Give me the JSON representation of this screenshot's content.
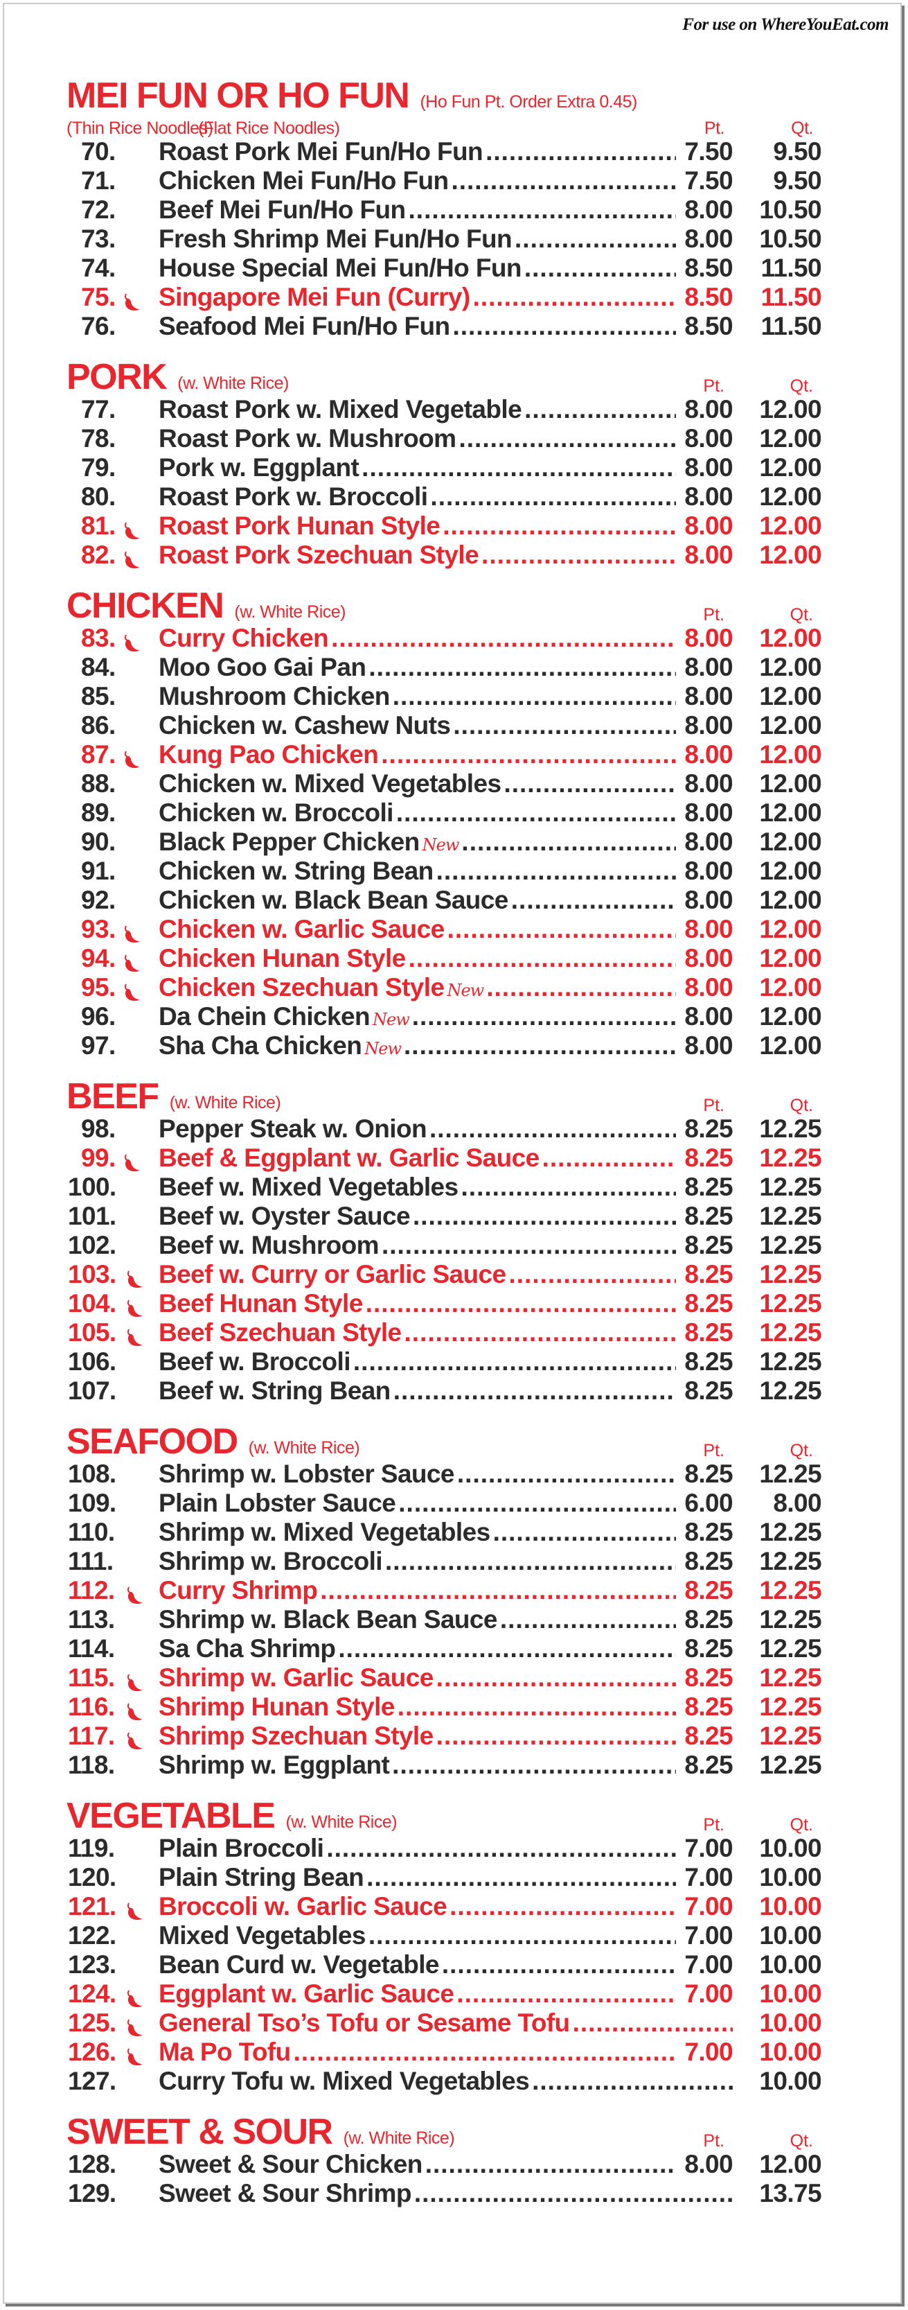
{
  "credit": "For use on WhereYouEat.com",
  "colors": {
    "accent_red": "#e8262e",
    "text": "#2b2b2b"
  },
  "column_labels": {
    "pt": "Pt.",
    "qt": "Qt."
  },
  "new_label": "New",
  "sections": [
    {
      "title": "MEI FUN OR HO FUN",
      "note": "(Ho Fun Pt. Order Extra 0.45)",
      "sub_left": "(Thin Rice Noodles)",
      "sub_right": "(Flat Rice Noodles)",
      "items": [
        {
          "num": "70.",
          "name": "Roast Pork Mei Fun/Ho Fun",
          "pt": "7.50",
          "qt": "9.50"
        },
        {
          "num": "71.",
          "name": "Chicken Mei Fun/Ho Fun",
          "pt": "7.50",
          "qt": "9.50"
        },
        {
          "num": "72.",
          "name": "Beef Mei Fun/Ho Fun",
          "pt": "8.00",
          "qt": "10.50"
        },
        {
          "num": "73.",
          "name": "Fresh Shrimp Mei Fun/Ho Fun",
          "pt": "8.00",
          "qt": "10.50"
        },
        {
          "num": "74.",
          "name": "House Special Mei Fun/Ho Fun",
          "pt": "8.50",
          "qt": "11.50"
        },
        {
          "num": "75.",
          "name": "Singapore Mei Fun (Curry)",
          "pt": "8.50",
          "qt": "11.50",
          "spicy": true
        },
        {
          "num": "76.",
          "name": "Seafood Mei Fun/Ho Fun",
          "pt": "8.50",
          "qt": "11.50"
        }
      ]
    },
    {
      "title": "PORK",
      "note": "(w. White Rice)",
      "items": [
        {
          "num": "77.",
          "name": "Roast Pork w. Mixed Vegetable",
          "pt": "8.00",
          "qt": "12.00"
        },
        {
          "num": "78.",
          "name": "Roast Pork w. Mushroom",
          "pt": "8.00",
          "qt": "12.00"
        },
        {
          "num": "79.",
          "name": "Pork w. Eggplant",
          "pt": "8.00",
          "qt": "12.00"
        },
        {
          "num": "80.",
          "name": "Roast Pork w. Broccoli",
          "pt": "8.00",
          "qt": "12.00"
        },
        {
          "num": "81.",
          "name": "Roast Pork Hunan Style",
          "pt": "8.00",
          "qt": "12.00",
          "spicy": true
        },
        {
          "num": "82.",
          "name": "Roast Pork Szechuan Style",
          "pt": "8.00",
          "qt": "12.00",
          "spicy": true
        }
      ]
    },
    {
      "title": "CHICKEN",
      "note": "(w. White Rice)",
      "items": [
        {
          "num": "83.",
          "name": "Curry Chicken",
          "pt": "8.00",
          "qt": "12.00",
          "spicy": true
        },
        {
          "num": "84.",
          "name": "Moo Goo Gai Pan",
          "pt": "8.00",
          "qt": "12.00"
        },
        {
          "num": "85.",
          "name": "Mushroom Chicken",
          "pt": "8.00",
          "qt": "12.00"
        },
        {
          "num": "86.",
          "name": "Chicken w. Cashew Nuts",
          "pt": "8.00",
          "qt": "12.00"
        },
        {
          "num": "87.",
          "name": "Kung Pao Chicken",
          "pt": "8.00",
          "qt": "12.00",
          "spicy": true
        },
        {
          "num": "88.",
          "name": "Chicken w. Mixed Vegetables",
          "pt": "8.00",
          "qt": "12.00"
        },
        {
          "num": "89.",
          "name": "Chicken w. Broccoli",
          "pt": "8.00",
          "qt": "12.00"
        },
        {
          "num": "90.",
          "name": "Black Pepper Chicken",
          "pt": "8.00",
          "qt": "12.00",
          "new": true
        },
        {
          "num": "91.",
          "name": "Chicken w. String Bean",
          "pt": "8.00",
          "qt": "12.00"
        },
        {
          "num": "92.",
          "name": "Chicken w. Black Bean Sauce",
          "pt": "8.00",
          "qt": "12.00"
        },
        {
          "num": "93.",
          "name": "Chicken w. Garlic Sauce",
          "pt": "8.00",
          "qt": "12.00",
          "spicy": true
        },
        {
          "num": "94.",
          "name": "Chicken Hunan Style",
          "pt": "8.00",
          "qt": "12.00",
          "spicy": true
        },
        {
          "num": "95.",
          "name": "Chicken Szechuan Style",
          "pt": "8.00",
          "qt": "12.00",
          "spicy": true,
          "new": true
        },
        {
          "num": "96.",
          "name": "Da Chein Chicken",
          "pt": "8.00",
          "qt": "12.00",
          "new": true
        },
        {
          "num": "97.",
          "name": "Sha Cha Chicken",
          "pt": "8.00",
          "qt": "12.00",
          "new": true
        }
      ]
    },
    {
      "title": "BEEF",
      "note": "(w. White Rice)",
      "items": [
        {
          "num": "98.",
          "name": "Pepper Steak w. Onion",
          "pt": "8.25",
          "qt": "12.25"
        },
        {
          "num": "99.",
          "name": "Beef & Eggplant w. Garlic Sauce",
          "pt": "8.25",
          "qt": "12.25",
          "spicy": true
        },
        {
          "num": "100.",
          "name": "Beef w. Mixed Vegetables",
          "pt": "8.25",
          "qt": "12.25"
        },
        {
          "num": "101.",
          "name": "Beef w. Oyster Sauce",
          "pt": "8.25",
          "qt": "12.25"
        },
        {
          "num": "102.",
          "name": "Beef w. Mushroom",
          "pt": "8.25",
          "qt": "12.25"
        },
        {
          "num": "103.",
          "name": "Beef w. Curry or Garlic Sauce",
          "pt": "8.25",
          "qt": "12.25",
          "spicy": true
        },
        {
          "num": "104.",
          "name": "Beef Hunan Style",
          "pt": "8.25",
          "qt": "12.25",
          "spicy": true
        },
        {
          "num": "105.",
          "name": "Beef Szechuan Style",
          "pt": "8.25",
          "qt": "12.25",
          "spicy": true
        },
        {
          "num": "106.",
          "name": "Beef w. Broccoli",
          "pt": "8.25",
          "qt": "12.25"
        },
        {
          "num": "107.",
          "name": "Beef w. String Bean",
          "pt": "8.25",
          "qt": "12.25"
        }
      ]
    },
    {
      "title": "SEAFOOD",
      "note": "(w. White Rice)",
      "items": [
        {
          "num": "108.",
          "name": "Shrimp w. Lobster Sauce",
          "pt": "8.25",
          "qt": "12.25"
        },
        {
          "num": "109.",
          "name": "Plain Lobster Sauce",
          "pt": "6.00",
          "qt": "8.00"
        },
        {
          "num": "110.",
          "name": "Shrimp w. Mixed Vegetables",
          "pt": "8.25",
          "qt": "12.25"
        },
        {
          "num": "111.",
          "name": "Shrimp w. Broccoli",
          "pt": "8.25",
          "qt": "12.25"
        },
        {
          "num": "112.",
          "name": "Curry Shrimp",
          "pt": "8.25",
          "qt": "12.25",
          "spicy": true
        },
        {
          "num": "113.",
          "name": "Shrimp w. Black Bean Sauce",
          "pt": "8.25",
          "qt": "12.25"
        },
        {
          "num": "114.",
          "name": "Sa Cha Shrimp",
          "pt": "8.25",
          "qt": "12.25"
        },
        {
          "num": "115.",
          "name": "Shrimp w. Garlic Sauce",
          "pt": "8.25",
          "qt": "12.25",
          "spicy": true
        },
        {
          "num": "116.",
          "name": "Shrimp Hunan Style",
          "pt": "8.25",
          "qt": "12.25",
          "spicy": true
        },
        {
          "num": "117.",
          "name": "Shrimp Szechuan Style",
          "pt": "8.25",
          "qt": "12.25",
          "spicy": true
        },
        {
          "num": "118.",
          "name": "Shrimp w. Eggplant",
          "pt": "8.25",
          "qt": "12.25"
        }
      ]
    },
    {
      "title": "VEGETABLE",
      "note": "(w. White Rice)",
      "items": [
        {
          "num": "119.",
          "name": "Plain Broccoli",
          "pt": "7.00",
          "qt": "10.00"
        },
        {
          "num": "120.",
          "name": "Plain String Bean",
          "pt": "7.00",
          "qt": "10.00"
        },
        {
          "num": "121.",
          "name": "Broccoli w. Garlic Sauce",
          "pt": "7.00",
          "qt": "10.00",
          "spicy": true
        },
        {
          "num": "122.",
          "name": "Mixed Vegetables",
          "pt": "7.00",
          "qt": "10.00"
        },
        {
          "num": "123.",
          "name": "Bean Curd w. Vegetable",
          "pt": "7.00",
          "qt": "10.00"
        },
        {
          "num": "124.",
          "name": "Eggplant w. Garlic Sauce",
          "pt": "7.00",
          "qt": "10.00",
          "spicy": true
        },
        {
          "num": "125.",
          "name": "General Tso’s Tofu or Sesame Tofu",
          "pt": "",
          "qt": "10.00",
          "spicy": true
        },
        {
          "num": "126.",
          "name": "Ma Po Tofu",
          "pt": "7.00",
          "qt": "10.00",
          "spicy": true
        },
        {
          "num": "127.",
          "name": "Curry Tofu w. Mixed Vegetables",
          "pt": "",
          "qt": "10.00"
        }
      ]
    },
    {
      "title": "SWEET & SOUR",
      "note": "(w. White Rice)",
      "items": [
        {
          "num": "128.",
          "name": "Sweet & Sour Chicken",
          "pt": "8.00",
          "qt": "12.00"
        },
        {
          "num": "129.",
          "name": "Sweet & Sour Shrimp",
          "pt": "",
          "qt": "13.75"
        }
      ]
    }
  ]
}
